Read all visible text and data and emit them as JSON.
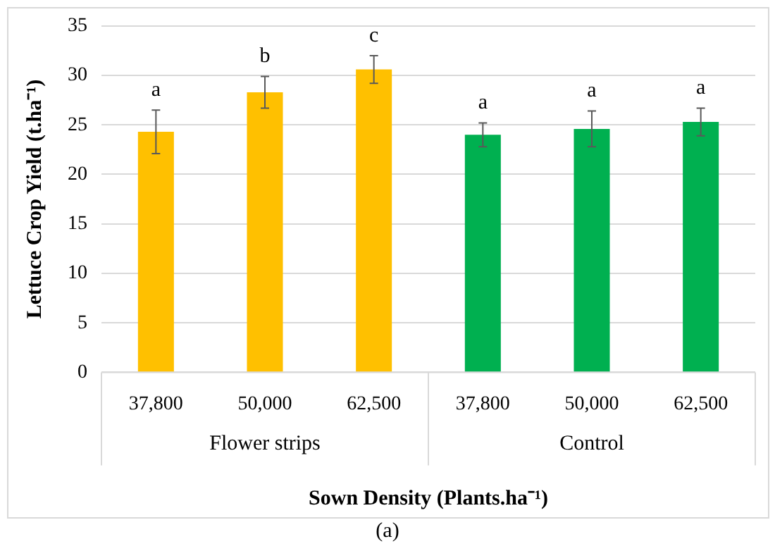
{
  "chart_data": {
    "type": "bar",
    "xlabel": "Sown Density (Plants.ha⁻¹)",
    "ylabel": "Lettuce Crop Yield (t.ha⁻¹)",
    "categories": [
      "37,800",
      "50,000",
      "62,500",
      "37,800",
      "50,000",
      "62,500"
    ],
    "values": [
      24.3,
      28.3,
      30.6,
      24.0,
      24.6,
      25.3
    ],
    "errors": [
      2.2,
      1.6,
      1.4,
      1.2,
      1.8,
      1.4
    ],
    "colors": [
      "#ffc000",
      "#ffc000",
      "#ffc000",
      "#00b050",
      "#00b050",
      "#00b050"
    ],
    "ylim": [
      0,
      35
    ],
    "yticks": [
      0,
      5,
      10,
      15,
      20,
      25,
      30,
      35
    ],
    "grid": "y",
    "legend": false,
    "annotations": [
      "a",
      "b",
      "c",
      "a",
      "a",
      "a",
      "Flower strips",
      "Control",
      "(a)"
    ]
  }
}
